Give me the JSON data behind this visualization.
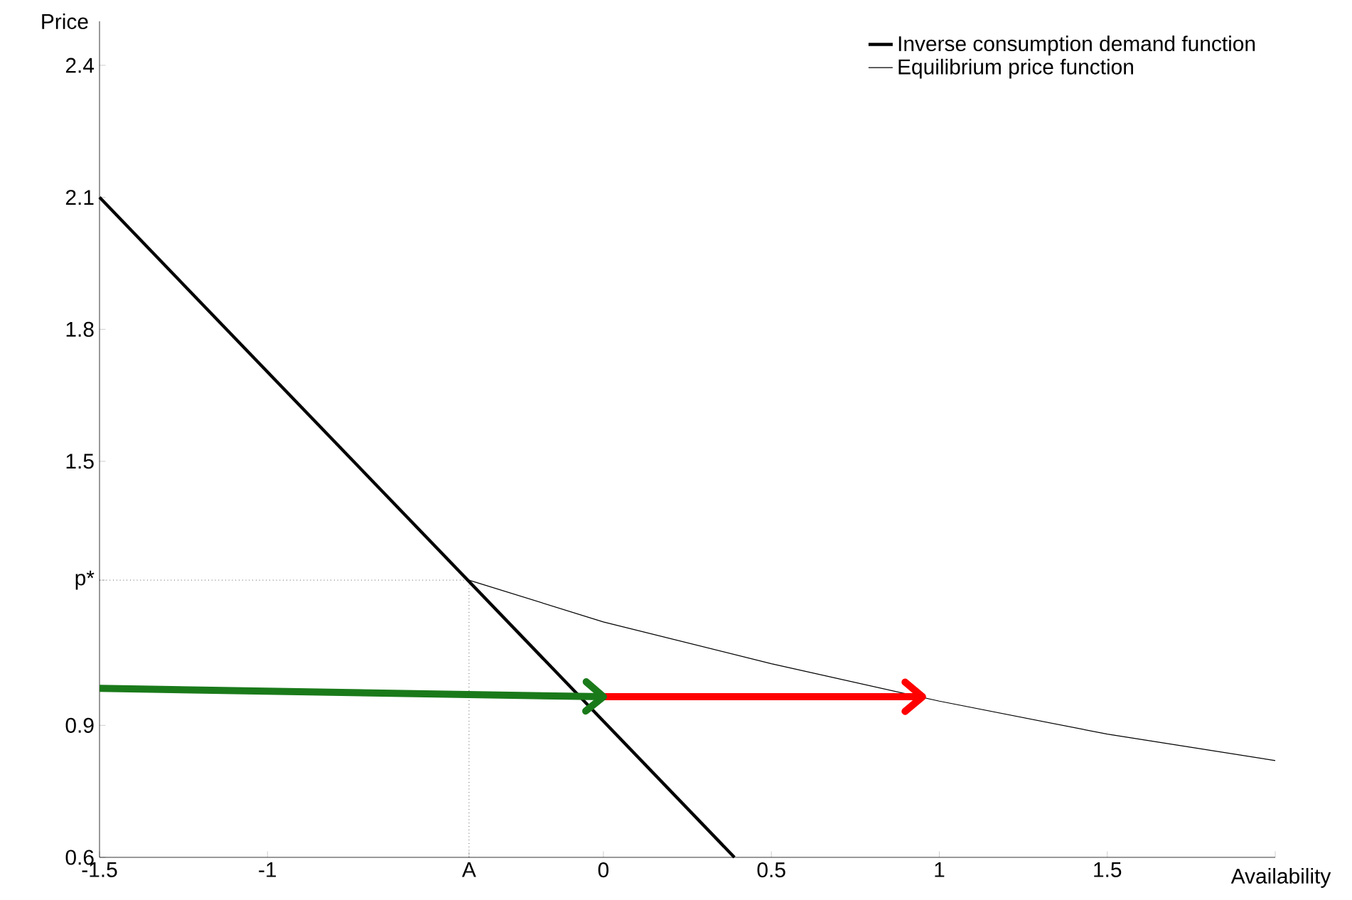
{
  "chart_data": {
    "type": "line",
    "xlabel": "Availability",
    "ylabel": "Price",
    "xlim": [
      -1.5,
      2
    ],
    "ylim": [
      0.6,
      2.5
    ],
    "xticks": [
      -1.5,
      -1,
      {
        "value": -0.4,
        "label": "A"
      },
      0,
      0.5,
      1,
      1.5,
      {
        "value": 2,
        "label": null
      }
    ],
    "yticks": [
      0.6,
      0.9,
      {
        "value": 1.23,
        "label": "p*"
      },
      1.5,
      1.8,
      2.1,
      2.4
    ],
    "series": [
      {
        "name": "Inverse consumption demand function",
        "color": "#000000",
        "x": [
          -1.5,
          0.39
        ],
        "values": [
          2.1,
          0.6
        ]
      },
      {
        "name": "Equilibrium price function",
        "color": "#000000",
        "x": [
          -0.4,
          0,
          0.5,
          1,
          1.5,
          2
        ],
        "values": [
          1.23,
          1.135,
          1.04,
          0.955,
          0.88,
          0.82
        ]
      },
      {
        "color": "#1a7a1a",
        "x": [
          -1.5,
          0
        ],
        "values": [
          0.984,
          0.965
        ]
      },
      {
        "color": "#ff0000",
        "x": [
          0,
          0.95
        ],
        "values": [
          0.965,
          0.965
        ]
      }
    ],
    "ref_lines": [
      {
        "axis": "x",
        "value": -0.4,
        "line_style": "dotted"
      },
      {
        "axis": "y",
        "value": 1.23,
        "line_style": "dotted"
      }
    ],
    "legend": "top right",
    "grid": false
  }
}
